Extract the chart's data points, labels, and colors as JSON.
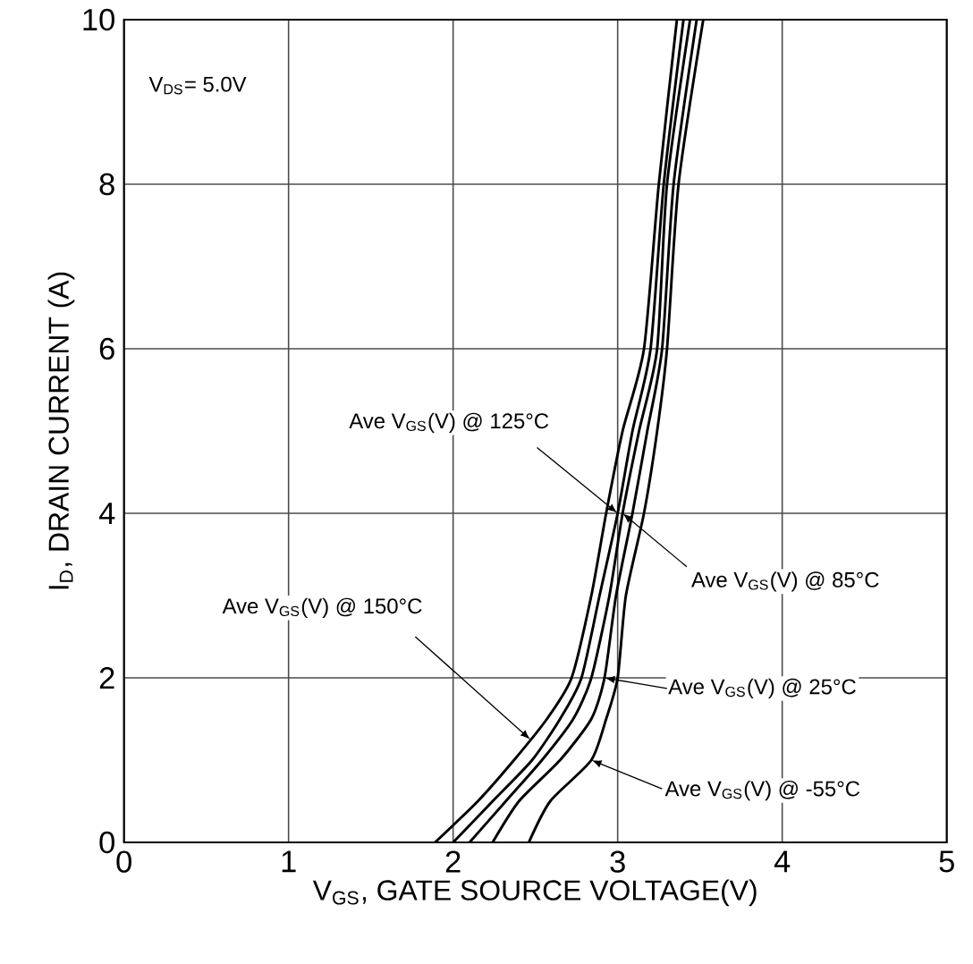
{
  "chart_data": {
    "type": "line",
    "xlabel": "V$_{GS}$, GATE SOURCE VOLTAGE(V)",
    "ylabel": "I$_{D}$, DRAIN CURRENT (A)",
    "xlim": [
      0,
      5
    ],
    "ylim": [
      0,
      10
    ],
    "xticks": [
      0,
      1,
      2,
      3,
      4,
      5
    ],
    "yticks": [
      0,
      2,
      4,
      6,
      8,
      10
    ],
    "grid": true,
    "marker": "none",
    "line_style": "solid",
    "annotations": [
      "V$_{DS}$= 5.0V",
      {
        "text": "Ave V$_{GS}$(V) @ 150°C",
        "x": 2.47,
        "y": 1.25
      },
      {
        "text": "Ave V$_{GS}$(V) @ 125°C",
        "x": 3.0,
        "y": 4
      },
      {
        "text": "Ave V$_{GS}$(V) @ 85°C",
        "x": 3.03,
        "y": 4
      },
      {
        "text": "Ave V$_{GS}$(V) @ 25°C",
        "x": 2.92,
        "y": 2
      },
      {
        "text": "Ave V$_{GS}$(V) @ -55°C",
        "x": 2.84,
        "y": 1
      }
    ],
    "series": [
      {
        "color": "#000000",
        "x": [
          1.89,
          2.15,
          2.37,
          2.57,
          2.72,
          2.84,
          2.93,
          3.03,
          3.16,
          3.25,
          3.36
        ],
        "values": [
          0,
          0.5,
          1,
          1.5,
          2,
          3,
          4,
          5,
          6,
          8,
          10
        ]
      },
      {
        "color": "#000000",
        "x": [
          2.0,
          2.24,
          2.48,
          2.65,
          2.78,
          2.89,
          3.0,
          3.09,
          3.2,
          3.28,
          3.4
        ],
        "values": [
          0,
          0.5,
          1,
          1.5,
          2,
          3,
          4,
          5,
          6,
          8,
          10
        ]
      },
      {
        "color": "#000000",
        "x": [
          2.1,
          2.32,
          2.54,
          2.73,
          2.84,
          2.95,
          3.03,
          3.13,
          3.24,
          3.3,
          3.44
        ],
        "values": [
          0,
          0.5,
          1,
          1.5,
          2,
          3,
          4,
          5,
          6,
          8,
          10
        ]
      },
      {
        "color": "#000000",
        "x": [
          2.24,
          2.4,
          2.65,
          2.84,
          2.92,
          2.99,
          3.09,
          3.18,
          3.27,
          3.34,
          3.48
        ],
        "values": [
          0,
          0.5,
          1,
          1.5,
          2,
          3,
          4,
          5,
          6,
          8,
          10
        ]
      },
      {
        "color": "#000000",
        "x": [
          2.46,
          2.59,
          2.84,
          2.93,
          3.0,
          3.05,
          3.16,
          3.24,
          3.3,
          3.37,
          3.52
        ],
        "values": [
          0,
          0.5,
          1,
          1.5,
          2,
          3,
          4,
          5,
          6,
          8,
          10
        ]
      }
    ]
  }
}
